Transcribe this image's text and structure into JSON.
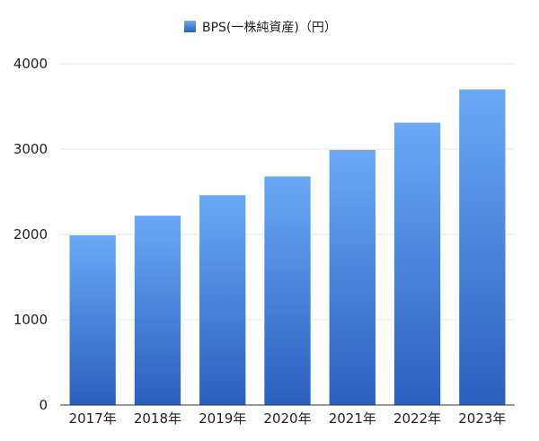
{
  "chart_data": {
    "type": "bar",
    "categories": [
      "2017年",
      "2018年",
      "2019年",
      "2020年",
      "2021年",
      "2022年",
      "2023年"
    ],
    "series": [
      {
        "name": "BPS(一株純資産)（円）",
        "values": [
          1990,
          2220,
          2460,
          2680,
          2990,
          3310,
          3700
        ]
      }
    ],
    "ylim": [
      0,
      4000
    ],
    "yticks": [
      0,
      1000,
      2000,
      3000,
      4000
    ],
    "grid": true,
    "legend": "top-center",
    "colors": {
      "bar_top": "#6aa9f7",
      "bar_bottom": "#2b5fbe",
      "grid": "#e6e6e6",
      "axis": "#333333"
    }
  }
}
